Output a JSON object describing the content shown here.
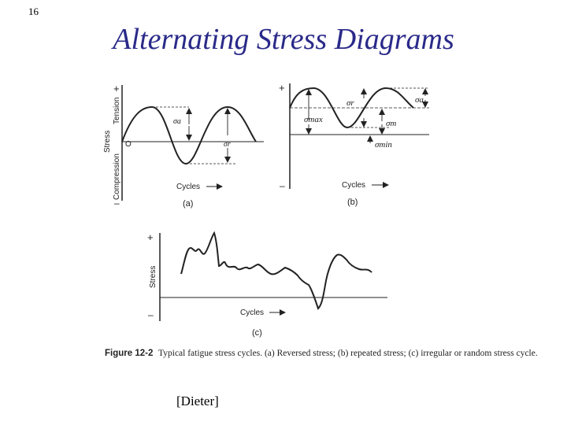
{
  "slide": {
    "number": "16",
    "title": "Alternating Stress Diagrams"
  },
  "panel_a": {
    "plus_label": "+",
    "tension_label": "Tension",
    "stress_label": "Stress",
    "compression_label": "Compression",
    "minus_label": "–",
    "origin_label": "O",
    "amp_label": "σa",
    "range_label": "σr",
    "cycles_label": "Cycles",
    "tag": "(a)"
  },
  "panel_b": {
    "plus_label": "+",
    "minus_label": "–",
    "range_label": "σr",
    "amp_label": "σa",
    "max_label": "σmax",
    "mean_label": "σm",
    "min_label": "σmin",
    "cycles_label": "Cycles",
    "tag": "(b)"
  },
  "panel_c": {
    "plus_label": "+",
    "minus_label": "–",
    "stress_label": "Stress",
    "cycles_label": "Cycles",
    "tag": "(c)"
  },
  "caption": {
    "figure_label": "Figure 12-2",
    "text": "Typical fatigue stress cycles. (a) Reversed stress; (b) repeated stress; (c) irregular or random stress cycle."
  },
  "source": "[Dieter]",
  "colors": {
    "title": "#2a2a8a",
    "line": "#222222"
  }
}
